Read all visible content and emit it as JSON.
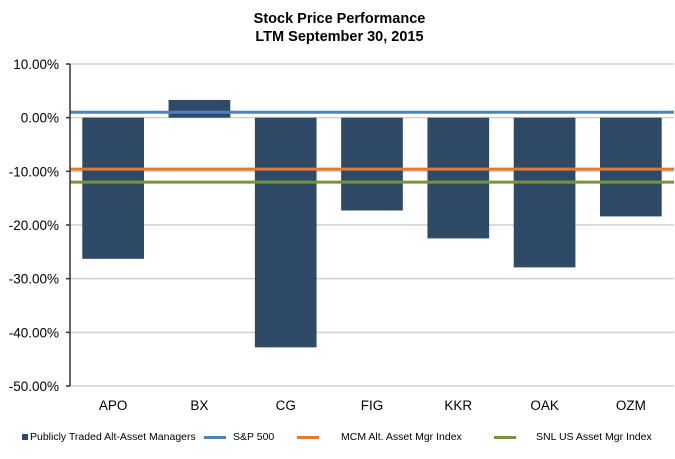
{
  "chart_data": {
    "type": "bar",
    "title": "Stock Price Performance",
    "subtitle": "LTM September 30, 2015",
    "xlabel": "",
    "ylabel": "",
    "categories": [
      "APO",
      "BX",
      "CG",
      "FIG",
      "KKR",
      "OAK",
      "OZM"
    ],
    "series": [
      {
        "name": "Publicly Traded Alt-Asset Managers",
        "type": "bar",
        "color": "#2e4a66",
        "values": [
          -26.3,
          3.3,
          -42.8,
          -17.3,
          -22.5,
          -27.9,
          -18.4
        ]
      }
    ],
    "reference_lines": [
      {
        "name": "S&P 500",
        "value": 1.0,
        "color": "#4f81bd"
      },
      {
        "name": "MCM Alt. Asset Mgr Index",
        "value": -9.6,
        "color": "#e8792b"
      },
      {
        "name": "SNL US Asset Mgr Index",
        "value": -12.0,
        "color": "#77933c"
      }
    ],
    "ylim": [
      -50,
      10
    ],
    "yticks": [
      10,
      0,
      -10,
      -20,
      -30,
      -40,
      -50
    ],
    "ytick_labels": [
      "10.00%",
      "0.00%",
      "-10.00%",
      "-20.00%",
      "-30.00%",
      "-40.00%",
      "-50.00%"
    ],
    "grid": true,
    "legend_position": "bottom",
    "legend": [
      "Publicly Traded Alt-Asset Managers",
      "S&P 500",
      "MCM Alt. Asset Mgr Index",
      "SNL US Asset Mgr Index"
    ]
  }
}
